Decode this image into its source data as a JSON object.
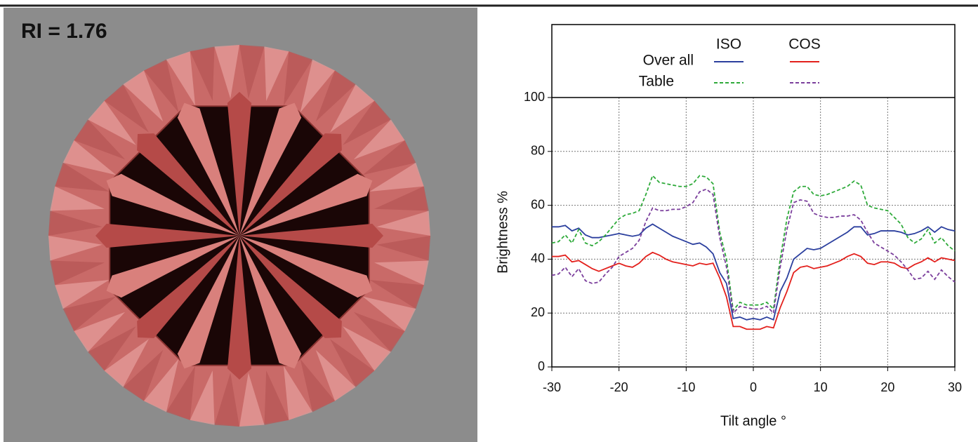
{
  "panel_label": "RI = 1.76",
  "chart_data": {
    "type": "line",
    "xlabel": "Tilt angle °",
    "ylabel": "Brightness %",
    "legend": {
      "columns": [
        "ISO",
        "COS"
      ],
      "rows": [
        "Over all",
        "Table"
      ]
    },
    "xlim": [
      -30,
      30
    ],
    "xticks": [
      -30,
      -20,
      -10,
      0,
      10,
      20,
      30
    ],
    "ylim": [
      0,
      100
    ],
    "yticks": [
      0,
      20,
      40,
      60,
      80,
      100
    ],
    "grid": true,
    "x": [
      -30,
      -29,
      -28,
      -27,
      -26,
      -25,
      -24,
      -23,
      -22,
      -21,
      -20,
      -19,
      -18,
      -17,
      -16,
      -15,
      -14,
      -13,
      -12,
      -11,
      -10,
      -9,
      -8,
      -7,
      -6,
      -5,
      -4,
      -3,
      -2,
      -1,
      0,
      1,
      2,
      3,
      4,
      5,
      6,
      7,
      8,
      9,
      10,
      11,
      12,
      13,
      14,
      15,
      16,
      17,
      18,
      19,
      20,
      21,
      22,
      23,
      24,
      25,
      26,
      27,
      28,
      29,
      30
    ],
    "series": [
      {
        "color": "#2b3f9e",
        "dashed": false,
        "values": [
          52,
          52,
          52.5,
          50.5,
          51.5,
          49,
          48,
          48,
          48.5,
          49,
          49.5,
          49,
          48.5,
          49,
          51.5,
          53,
          51.5,
          50,
          48.5,
          47.5,
          46.5,
          45.5,
          46,
          44.5,
          42,
          35,
          31,
          18,
          18.5,
          17.5,
          18,
          17.5,
          18.5,
          17.5,
          28,
          33,
          40,
          42,
          44,
          43.5,
          44,
          45.5,
          47,
          48.5,
          50,
          52,
          52,
          49,
          49.5,
          50.5,
          50.5,
          50.5,
          50,
          49,
          49.5,
          50.5,
          52,
          50,
          52,
          51,
          50.5
        ]
      },
      {
        "color": "#e3201c",
        "dashed": false,
        "values": [
          41,
          41,
          41.5,
          39,
          39.5,
          38,
          36.5,
          35.5,
          36.5,
          37.5,
          38.5,
          37.5,
          37,
          38.5,
          41,
          42.5,
          41.5,
          40,
          39,
          38.5,
          38,
          37.5,
          38.5,
          38,
          38.5,
          33,
          26,
          15,
          15,
          14,
          14,
          14,
          15,
          14.5,
          22,
          28,
          35,
          37,
          37.5,
          36.5,
          37,
          37.5,
          38.5,
          39.5,
          41,
          42,
          41,
          38.5,
          38,
          39,
          39,
          38.5,
          37,
          36.5,
          38,
          39,
          40.5,
          39,
          40.5,
          40,
          39.5
        ]
      },
      {
        "color": "#2eaa3a",
        "dashed": true,
        "values": [
          46,
          46.5,
          49,
          46,
          51,
          46,
          45,
          46.5,
          49,
          52,
          55,
          56.5,
          57,
          58,
          64,
          71,
          68.5,
          68,
          67.5,
          67,
          67,
          68,
          71,
          70.5,
          68,
          50,
          40,
          21,
          24,
          23,
          23,
          23,
          24,
          21.5,
          40,
          55,
          65,
          67,
          67,
          64,
          63.5,
          64,
          65,
          66,
          67,
          69,
          67.5,
          60,
          59,
          58.5,
          58,
          55.5,
          53,
          48,
          46,
          47.5,
          51,
          46,
          48,
          45,
          43
        ]
      },
      {
        "color": "#7b3f9c",
        "dashed": true,
        "values": [
          34,
          34.5,
          37,
          33.5,
          36.5,
          32,
          31,
          31.5,
          34.5,
          37,
          41,
          42.5,
          44,
          47,
          54,
          59,
          58,
          58,
          58.5,
          58.5,
          59.5,
          61,
          65,
          66,
          64,
          48,
          37,
          20,
          22.5,
          22,
          21.5,
          21.5,
          22.5,
          20,
          37,
          51,
          61,
          62,
          61.5,
          57,
          56,
          55.5,
          55.5,
          56,
          56,
          56.5,
          54.5,
          50,
          46,
          44.5,
          43,
          41.5,
          39,
          36,
          32.5,
          33,
          35.5,
          32.5,
          36,
          33.5,
          31.5
        ]
      }
    ]
  }
}
